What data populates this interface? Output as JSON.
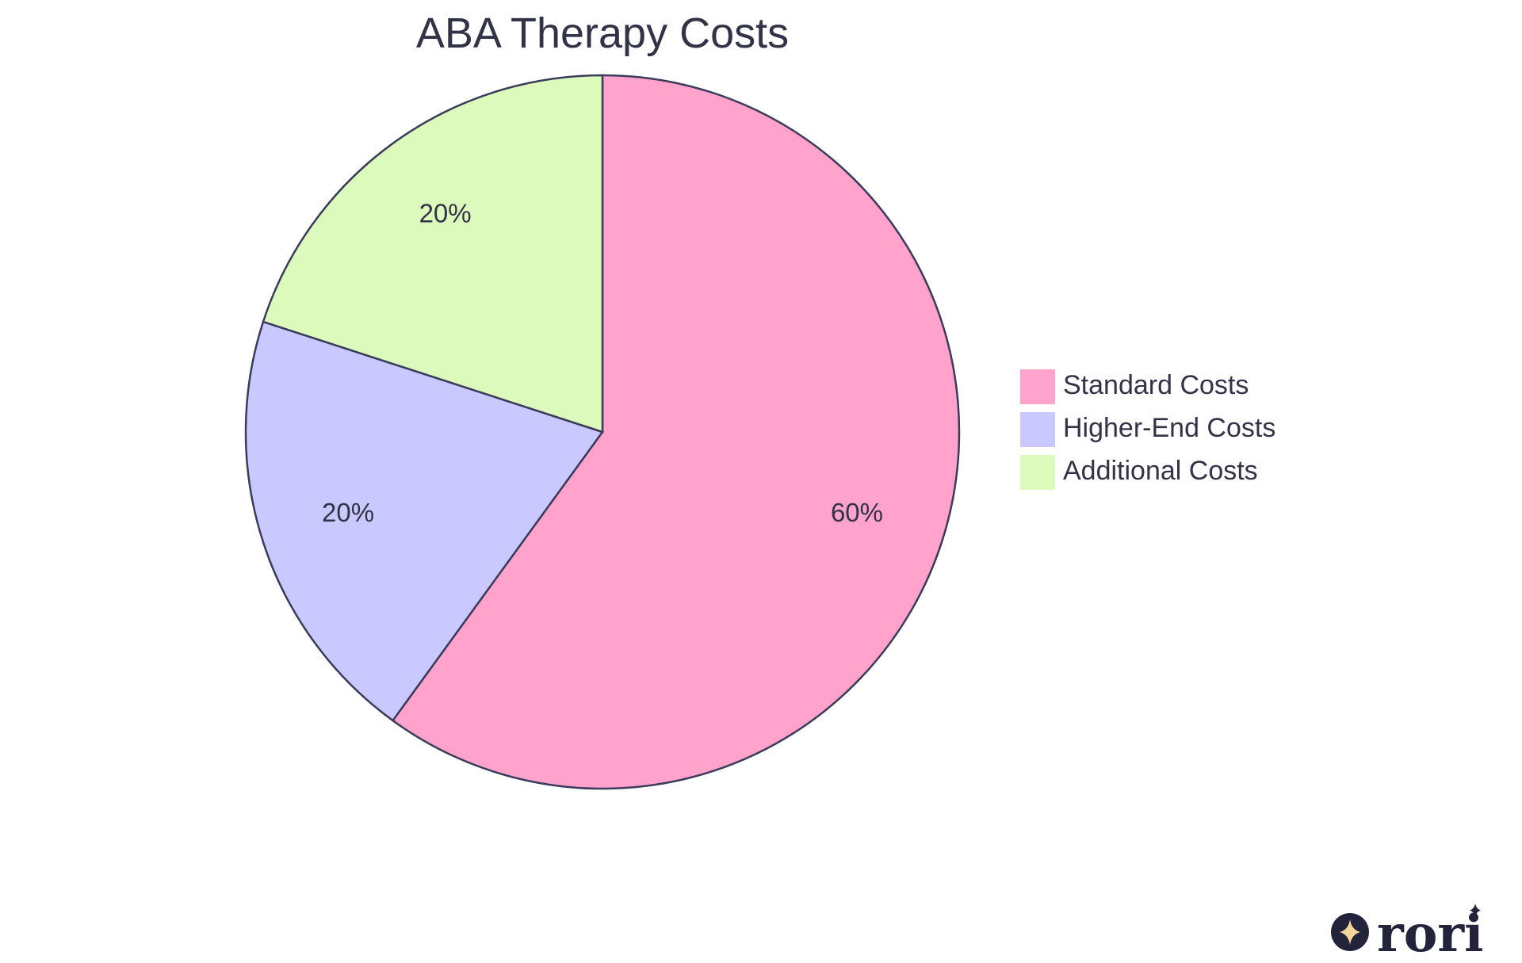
{
  "chart_data": {
    "type": "pie",
    "title": "ABA Therapy Costs",
    "slices": [
      {
        "label": "Standard Costs",
        "value": 60,
        "display": "60%",
        "color": "#ffa3cc"
      },
      {
        "label": "Higher-End Costs",
        "value": 20,
        "display": "20%",
        "color": "#c9c9ff"
      },
      {
        "label": "Additional Costs",
        "value": 20,
        "display": "20%",
        "color": "#dbfabb"
      }
    ],
    "legend_position": "right"
  },
  "logo": {
    "text": "rori",
    "colors": {
      "ink": "#23233b",
      "star": "#f5d59a"
    }
  }
}
